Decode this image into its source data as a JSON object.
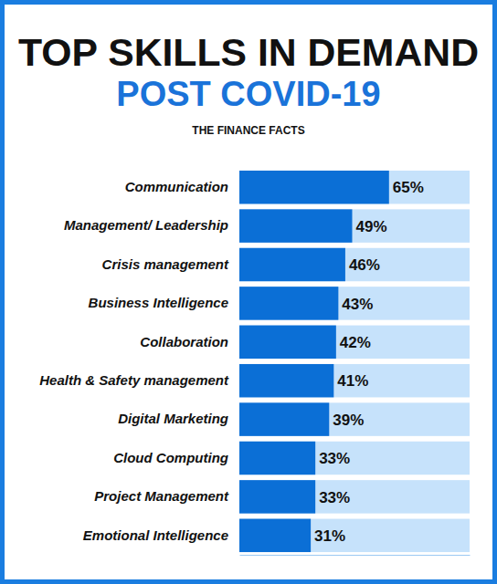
{
  "chart_data": {
    "type": "bar",
    "orientation": "horizontal",
    "title": "TOP SKILLS IN DEMAND",
    "subtitle": "POST COVID-19",
    "annotations": [
      "THE FINANCE FACTS"
    ],
    "categories": [
      "Communication",
      "Management/ Leadership",
      "Crisis management",
      "Business Intelligence",
      "Collaboration",
      "Health & Safety management",
      "Digital Marketing",
      "Cloud Computing",
      "Project Management",
      "Emotional Intelligence"
    ],
    "values": [
      65,
      49,
      46,
      43,
      42,
      41,
      39,
      33,
      33,
      31
    ],
    "value_labels": [
      "65%",
      "49%",
      "46%",
      "43%",
      "42%",
      "41%",
      "39%",
      "33%",
      "33%",
      "31%"
    ],
    "color": "#0b6fd6",
    "xlim": [
      0,
      100
    ],
    "grid": false,
    "data_labels": true,
    "tick_labels": "y"
  }
}
